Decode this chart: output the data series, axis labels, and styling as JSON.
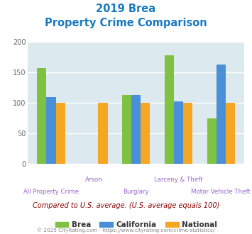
{
  "title_line1": "2019 Brea",
  "title_line2": "Property Crime Comparison",
  "title_color": "#1a7abf",
  "categories": [
    "All Property Crime",
    "Arson",
    "Burglary",
    "Larceny & Theft",
    "Motor Vehicle Theft"
  ],
  "series": {
    "Brea": [
      157,
      null,
      113,
      178,
      75
    ],
    "California": [
      110,
      null,
      113,
      103,
      163
    ],
    "National": [
      100,
      100,
      100,
      100,
      100
    ]
  },
  "colors": {
    "Brea": "#7fc241",
    "California": "#4a90d9",
    "National": "#f5a623"
  },
  "ylim": [
    0,
    200
  ],
  "yticks": [
    0,
    50,
    100,
    150,
    200
  ],
  "plot_bg": "#dce9ef",
  "grid_color": "#ffffff",
  "bar_width": 0.22,
  "subtitle_text": "Compared to U.S. average. (U.S. average equals 100)",
  "subtitle_color": "#8b0000",
  "copyright_text": "© 2025 CityRating.com - https://www.cityrating.com/crime-statistics/",
  "copyright_color": "#888888",
  "xlabel_color": "#9966cc",
  "tick_color": "#666666",
  "legend_labels": [
    "Brea",
    "California",
    "National"
  ]
}
